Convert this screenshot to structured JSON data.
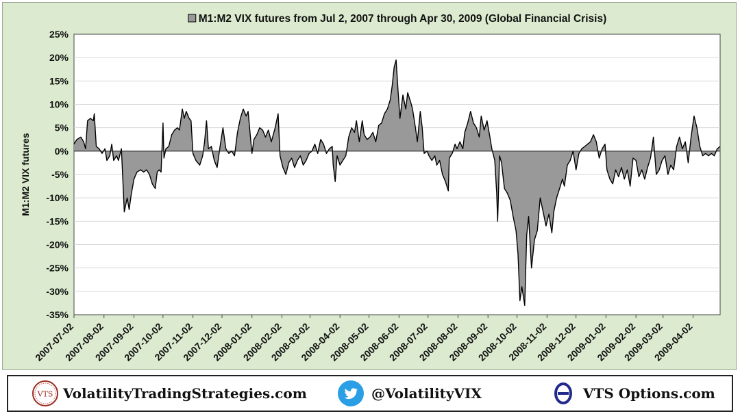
{
  "chart_data": {
    "type": "area",
    "title": "M1:M2 VIX futures from Jul 2, 2007 through Apr 30, 2009   (Global Financial Crisis)",
    "legend_marker": "square",
    "ylabel": "M1:M2 VIX futures",
    "xlabel": "",
    "ylim": [
      -35,
      25
    ],
    "yticks": [
      25,
      20,
      15,
      10,
      5,
      0,
      -5,
      -10,
      -15,
      -20,
      -25,
      -30,
      -35
    ],
    "ytick_format": "percent",
    "grid": true,
    "x_ticks": [
      "2007-07-02",
      "2007-08-02",
      "2007-09-02",
      "2007-10-02",
      "2007-11-02",
      "2007-12-02",
      "2008-01-02",
      "2008-02-02",
      "2008-03-02",
      "2008-04-02",
      "2008-05-02",
      "2008-06-02",
      "2008-07-02",
      "2008-08-02",
      "2008-09-02",
      "2008-10-02",
      "2008-11-02",
      "2008-12-02",
      "2009-01-02",
      "2009-02-02",
      "2009-03-02",
      "2009-04-02"
    ],
    "x_range": [
      "2007-07-02",
      "2009-04-30"
    ],
    "series": [
      {
        "fill_color": "#999999",
        "line_color": "#000000",
        "points": [
          [
            "2007-07-02",
            1.5
          ],
          [
            "2007-07-05",
            2.5
          ],
          [
            "2007-07-09",
            3.0
          ],
          [
            "2007-07-12",
            2.0
          ],
          [
            "2007-07-14",
            0.5
          ],
          [
            "2007-07-16",
            6.5
          ],
          [
            "2007-07-19",
            7.0
          ],
          [
            "2007-07-22",
            6.5
          ],
          [
            "2007-07-23",
            8.0
          ],
          [
            "2007-07-25",
            1.0
          ],
          [
            "2007-07-28",
            0.5
          ],
          [
            "2007-07-31",
            -0.5
          ],
          [
            "2007-08-03",
            0.5
          ],
          [
            "2007-08-05",
            -2.0
          ],
          [
            "2007-08-08",
            -1.0
          ],
          [
            "2007-08-10",
            1.5
          ],
          [
            "2007-08-12",
            -2.0
          ],
          [
            "2007-08-15",
            -1.0
          ],
          [
            "2007-08-17",
            -2.0
          ],
          [
            "2007-08-20",
            0.5
          ],
          [
            "2007-08-23",
            -13.0
          ],
          [
            "2007-08-26",
            -10.0
          ],
          [
            "2007-08-28",
            -12.5
          ],
          [
            "2007-08-30",
            -9.5
          ],
          [
            "2007-09-02",
            -6.0
          ],
          [
            "2007-09-05",
            -4.5
          ],
          [
            "2007-09-09",
            -4.0
          ],
          [
            "2007-09-12",
            -4.5
          ],
          [
            "2007-09-15",
            -4.0
          ],
          [
            "2007-09-18",
            -5.0
          ],
          [
            "2007-09-21",
            -7.0
          ],
          [
            "2007-09-24",
            -8.0
          ],
          [
            "2007-09-26",
            -4.5
          ],
          [
            "2007-09-28",
            -4.0
          ],
          [
            "2007-09-30",
            -4.5
          ],
          [
            "2007-10-02",
            6.0
          ],
          [
            "2007-10-03",
            -1.5
          ],
          [
            "2007-10-05",
            0.5
          ],
          [
            "2007-10-08",
            1.0
          ],
          [
            "2007-10-11",
            3.5
          ],
          [
            "2007-10-14",
            4.5
          ],
          [
            "2007-10-17",
            5.0
          ],
          [
            "2007-10-19",
            4.5
          ],
          [
            "2007-10-22",
            9.0
          ],
          [
            "2007-10-24",
            7.0
          ],
          [
            "2007-10-26",
            8.5
          ],
          [
            "2007-10-29",
            7.0
          ],
          [
            "2007-10-31",
            6.5
          ],
          [
            "2007-11-02",
            -0.5
          ],
          [
            "2007-11-05",
            -2.0
          ],
          [
            "2007-11-09",
            -3.0
          ],
          [
            "2007-11-12",
            -1.0
          ],
          [
            "2007-11-14",
            2.0
          ],
          [
            "2007-11-16",
            6.5
          ],
          [
            "2007-11-18",
            0.5
          ],
          [
            "2007-11-21",
            1.0
          ],
          [
            "2007-11-24",
            -2.0
          ],
          [
            "2007-11-27",
            -3.5
          ],
          [
            "2007-11-30",
            1.0
          ],
          [
            "2007-12-03",
            5.0
          ],
          [
            "2007-12-06",
            0.5
          ],
          [
            "2007-12-09",
            -0.5
          ],
          [
            "2007-12-12",
            0.0
          ],
          [
            "2007-12-15",
            -1.0
          ],
          [
            "2007-12-18",
            4.0
          ],
          [
            "2007-12-21",
            7.0
          ],
          [
            "2007-12-24",
            9.0
          ],
          [
            "2007-12-27",
            7.5
          ],
          [
            "2007-12-29",
            8.5
          ],
          [
            "2008-01-02",
            -0.5
          ],
          [
            "2008-01-04",
            2.5
          ],
          [
            "2008-01-07",
            3.5
          ],
          [
            "2008-01-10",
            5.0
          ],
          [
            "2008-01-13",
            4.5
          ],
          [
            "2008-01-16",
            3.0
          ],
          [
            "2008-01-19",
            4.5
          ],
          [
            "2008-01-22",
            2.0
          ],
          [
            "2008-01-24",
            3.5
          ],
          [
            "2008-01-26",
            5.0
          ],
          [
            "2008-01-29",
            8.0
          ],
          [
            "2008-01-31",
            -1.0
          ],
          [
            "2008-02-03",
            -3.5
          ],
          [
            "2008-02-06",
            -5.0
          ],
          [
            "2008-02-09",
            -2.5
          ],
          [
            "2008-02-12",
            -1.5
          ],
          [
            "2008-02-15",
            -3.5
          ],
          [
            "2008-02-18",
            -2.0
          ],
          [
            "2008-02-21",
            -1.0
          ],
          [
            "2008-02-24",
            -3.0
          ],
          [
            "2008-02-27",
            -2.0
          ],
          [
            "2008-03-01",
            -0.5
          ],
          [
            "2008-03-04",
            0.0
          ],
          [
            "2008-03-07",
            1.5
          ],
          [
            "2008-03-10",
            -0.5
          ],
          [
            "2008-03-13",
            2.5
          ],
          [
            "2008-03-16",
            1.5
          ],
          [
            "2008-03-19",
            -0.5
          ],
          [
            "2008-03-22",
            0.5
          ],
          [
            "2008-03-25",
            1.0
          ],
          [
            "2008-03-26",
            -3.0
          ],
          [
            "2008-03-28",
            -6.5
          ],
          [
            "2008-03-30",
            -1.0
          ],
          [
            "2008-04-02",
            -3.0
          ],
          [
            "2008-04-05",
            -2.0
          ],
          [
            "2008-04-08",
            -1.0
          ],
          [
            "2008-04-11",
            3.0
          ],
          [
            "2008-04-14",
            5.0
          ],
          [
            "2008-04-17",
            4.0
          ],
          [
            "2008-04-19",
            6.5
          ],
          [
            "2008-04-22",
            2.0
          ],
          [
            "2008-04-25",
            6.5
          ],
          [
            "2008-04-27",
            3.5
          ],
          [
            "2008-04-30",
            2.5
          ],
          [
            "2008-05-03",
            3.0
          ],
          [
            "2008-05-06",
            4.0
          ],
          [
            "2008-05-09",
            2.0
          ],
          [
            "2008-05-12",
            5.5
          ],
          [
            "2008-05-15",
            6.0
          ],
          [
            "2008-05-18",
            8.0
          ],
          [
            "2008-05-21",
            9.0
          ],
          [
            "2008-05-24",
            11.0
          ],
          [
            "2008-05-26",
            14.0
          ],
          [
            "2008-05-28",
            18.0
          ],
          [
            "2008-05-30",
            19.5
          ],
          [
            "2008-06-01",
            13.0
          ],
          [
            "2008-06-03",
            7.0
          ],
          [
            "2008-06-06",
            12.0
          ],
          [
            "2008-06-09",
            9.0
          ],
          [
            "2008-06-11",
            12.5
          ],
          [
            "2008-06-14",
            10.5
          ],
          [
            "2008-06-16",
            9.0
          ],
          [
            "2008-06-19",
            5.0
          ],
          [
            "2008-06-21",
            2.0
          ],
          [
            "2008-06-24",
            8.5
          ],
          [
            "2008-06-26",
            5.0
          ],
          [
            "2008-06-28",
            -0.5
          ],
          [
            "2008-07-01",
            0.0
          ],
          [
            "2008-07-03",
            -1.0
          ],
          [
            "2008-07-06",
            -2.0
          ],
          [
            "2008-07-09",
            -1.0
          ],
          [
            "2008-07-11",
            -3.0
          ],
          [
            "2008-07-14",
            -2.0
          ],
          [
            "2008-07-17",
            -5.0
          ],
          [
            "2008-07-20",
            -6.5
          ],
          [
            "2008-07-23",
            -8.5
          ],
          [
            "2008-07-24",
            -1.5
          ],
          [
            "2008-07-27",
            -0.5
          ],
          [
            "2008-07-30",
            1.5
          ],
          [
            "2008-08-01",
            0.5
          ],
          [
            "2008-08-04",
            2.0
          ],
          [
            "2008-08-07",
            0.5
          ],
          [
            "2008-08-09",
            4.0
          ],
          [
            "2008-08-12",
            6.0
          ],
          [
            "2008-08-15",
            8.5
          ],
          [
            "2008-08-18",
            6.0
          ],
          [
            "2008-08-21",
            5.0
          ],
          [
            "2008-08-24",
            3.0
          ],
          [
            "2008-08-26",
            7.5
          ],
          [
            "2008-08-29",
            4.5
          ],
          [
            "2008-09-01",
            6.5
          ],
          [
            "2008-09-04",
            3.0
          ],
          [
            "2008-09-06",
            0.5
          ],
          [
            "2008-09-09",
            -2.0
          ],
          [
            "2008-09-11",
            -9.0
          ],
          [
            "2008-09-12",
            -15.0
          ],
          [
            "2008-09-14",
            -1.0
          ],
          [
            "2008-09-16",
            -2.5
          ],
          [
            "2008-09-19",
            -8.0
          ],
          [
            "2008-09-22",
            -9.0
          ],
          [
            "2008-09-25",
            -10.5
          ],
          [
            "2008-09-28",
            -14.0
          ],
          [
            "2008-10-01",
            -17.0
          ],
          [
            "2008-10-03",
            -22.0
          ],
          [
            "2008-10-05",
            -32.0
          ],
          [
            "2008-10-07",
            -29.0
          ],
          [
            "2008-10-10",
            -33.0
          ],
          [
            "2008-10-12",
            -18.0
          ],
          [
            "2008-10-14",
            -14.0
          ],
          [
            "2008-10-17",
            -25.0
          ],
          [
            "2008-10-20",
            -19.0
          ],
          [
            "2008-10-23",
            -17.0
          ],
          [
            "2008-10-26",
            -10.0
          ],
          [
            "2008-10-29",
            -13.0
          ],
          [
            "2008-11-01",
            -16.0
          ],
          [
            "2008-11-04",
            -13.5
          ],
          [
            "2008-11-07",
            -17.5
          ],
          [
            "2008-11-09",
            -13.0
          ],
          [
            "2008-11-12",
            -10.0
          ],
          [
            "2008-11-15",
            -8.0
          ],
          [
            "2008-11-18",
            -6.0
          ],
          [
            "2008-11-20",
            -7.5
          ],
          [
            "2008-11-23",
            -3.0
          ],
          [
            "2008-11-26",
            -2.0
          ],
          [
            "2008-11-29",
            0.0
          ],
          [
            "2008-12-02",
            -4.0
          ],
          [
            "2008-12-05",
            -0.5
          ],
          [
            "2008-12-08",
            0.5
          ],
          [
            "2008-12-11",
            1.0
          ],
          [
            "2008-12-14",
            1.5
          ],
          [
            "2008-12-17",
            2.0
          ],
          [
            "2008-12-20",
            3.5
          ],
          [
            "2008-12-23",
            2.0
          ],
          [
            "2008-12-26",
            -1.5
          ],
          [
            "2008-12-29",
            0.5
          ],
          [
            "2009-01-01",
            1.5
          ],
          [
            "2009-01-03",
            -4.0
          ],
          [
            "2009-01-06",
            -6.0
          ],
          [
            "2009-01-09",
            -7.0
          ],
          [
            "2009-01-12",
            -4.0
          ],
          [
            "2009-01-15",
            -5.5
          ],
          [
            "2009-01-18",
            -3.5
          ],
          [
            "2009-01-21",
            -6.0
          ],
          [
            "2009-01-24",
            -4.0
          ],
          [
            "2009-01-27",
            -7.5
          ],
          [
            "2009-01-30",
            -1.5
          ],
          [
            "2009-02-02",
            -2.0
          ],
          [
            "2009-02-05",
            -5.5
          ],
          [
            "2009-02-08",
            -4.0
          ],
          [
            "2009-02-11",
            -6.0
          ],
          [
            "2009-02-14",
            -3.5
          ],
          [
            "2009-02-17",
            -1.5
          ],
          [
            "2009-02-20",
            3.0
          ],
          [
            "2009-02-23",
            -5.0
          ],
          [
            "2009-02-26",
            -4.0
          ],
          [
            "2009-03-01",
            -2.0
          ],
          [
            "2009-03-04",
            -1.0
          ],
          [
            "2009-03-07",
            -5.0
          ],
          [
            "2009-03-10",
            -3.0
          ],
          [
            "2009-03-13",
            -4.0
          ],
          [
            "2009-03-16",
            1.0
          ],
          [
            "2009-03-19",
            3.0
          ],
          [
            "2009-03-22",
            0.5
          ],
          [
            "2009-03-25",
            2.0
          ],
          [
            "2009-03-28",
            -2.5
          ],
          [
            "2009-03-31",
            3.0
          ],
          [
            "2009-04-03",
            7.5
          ],
          [
            "2009-04-06",
            5.0
          ],
          [
            "2009-04-09",
            1.0
          ],
          [
            "2009-04-12",
            -1.0
          ],
          [
            "2009-04-15",
            -0.5
          ],
          [
            "2009-04-18",
            -1.0
          ],
          [
            "2009-04-21",
            -0.5
          ],
          [
            "2009-04-24",
            -1.0
          ],
          [
            "2009-04-27",
            0.5
          ],
          [
            "2009-04-30",
            1.0
          ]
        ]
      }
    ]
  },
  "footer": {
    "site_logo_text": "VTS",
    "site_label": "VolatilityTradingStrategies.com",
    "twitter_label": "@VolatilityVIX",
    "options_label": "VTS Options.com",
    "options_logo_glyph": "Θ"
  }
}
